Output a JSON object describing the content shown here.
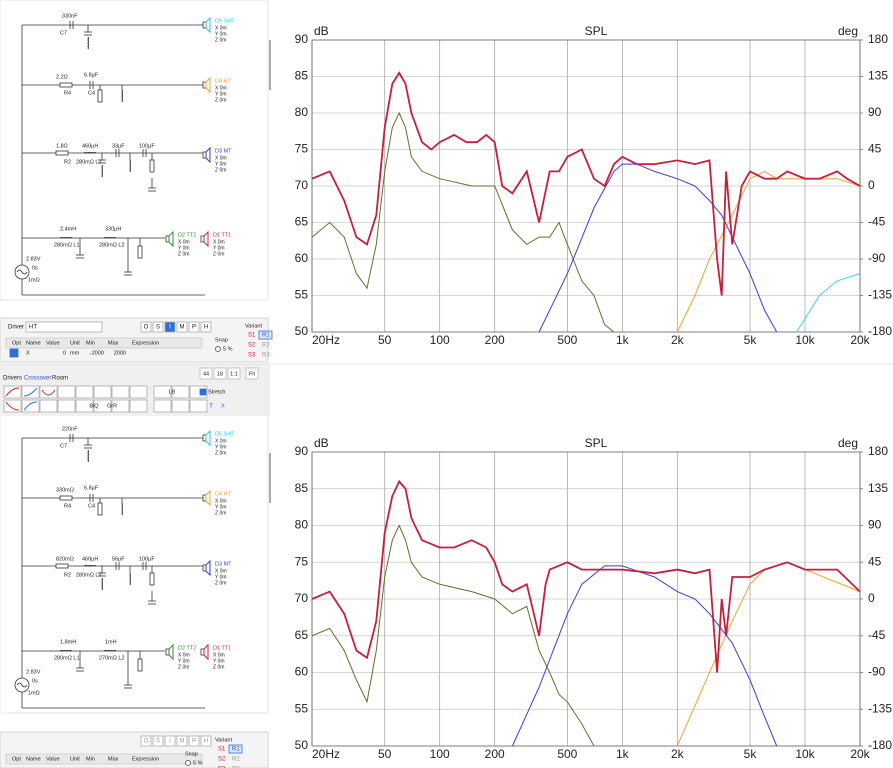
{
  "top": {
    "schematic": {
      "labels": [
        "330nF",
        "C7",
        "2.2Ω",
        "R4",
        "6.8µF",
        "C4",
        "1.8Ω",
        "R2",
        "460µH",
        "280mΩ L3",
        "33µF",
        "100µF",
        "2.4mH",
        "280mΩ L1",
        "330µH",
        "280mΩ L2",
        "2.83V",
        "0s",
        "1mΩ"
      ],
      "drivers": [
        {
          "name": "D5 SHT",
          "color": "#2ac4e6"
        },
        {
          "name": "D4 HT",
          "color": "#f0a030"
        },
        {
          "name": "D3 MT",
          "color": "#3040c0"
        },
        {
          "name": "D2 TT2",
          "color": "#3a8a3a"
        },
        {
          "name": "D1 TT1",
          "color": "#d02040"
        }
      ],
      "coords": [
        "X 0m",
        "Y 0m",
        "Z 0m"
      ]
    },
    "panel": {
      "driver_label": "Driver",
      "driver": "HT",
      "modes": [
        "O",
        "S",
        "I",
        "M",
        "P",
        "H"
      ],
      "header": [
        "Opt",
        "Name",
        "Value",
        "Unit",
        "Min",
        "Max",
        "Expression"
      ],
      "row": [
        "X",
        0,
        "mm",
        -2000,
        2000
      ],
      "snap": "Snap",
      "snap_value": "5 %",
      "variant": "Variant",
      "variants": [
        [
          "S1",
          "R1"
        ],
        [
          "S2",
          "R2"
        ],
        [
          "S3",
          "R3"
        ]
      ]
    },
    "chart_data": {
      "type": "line",
      "title": "SPL",
      "y_label": "dB",
      "y2_label": "deg",
      "x_scale": "log",
      "grid": true,
      "xlim": [
        20,
        20000
      ],
      "xticks": [
        {
          "value": 20,
          "label": "20Hz"
        },
        50,
        100,
        200,
        500,
        {
          "value": 1000,
          "label": "1k"
        },
        {
          "value": 2000,
          "label": "2k"
        },
        {
          "value": 5000,
          "label": "5k"
        },
        {
          "value": 10000,
          "label": "10k"
        },
        {
          "value": 20000,
          "label": "20k"
        }
      ],
      "ylim": [
        50,
        90
      ],
      "yticks": [
        50,
        55,
        60,
        65,
        70,
        75,
        80,
        85,
        90
      ],
      "y2lim": [
        -180,
        180
      ],
      "y2ticks": [
        -180,
        -135,
        -90,
        -45,
        0,
        45,
        90,
        135,
        180
      ],
      "series": [
        {
          "color": "#6b6b2a",
          "x": [
            20,
            25,
            30,
            35,
            40,
            45,
            50,
            55,
            60,
            65,
            70,
            80,
            100,
            150,
            200,
            250,
            300,
            350,
            400,
            450,
            500,
            600,
            700,
            800,
            900
          ],
          "values": [
            63,
            65,
            63,
            58,
            56,
            62,
            72,
            78,
            80,
            78,
            74,
            72,
            71,
            70,
            70,
            64,
            62,
            63,
            63,
            65,
            62,
            57,
            55,
            51,
            50
          ]
        },
        {
          "color": "#3b3bdc",
          "x": [
            350,
            500,
            700,
            900,
            1000,
            1200,
            1500,
            2000,
            2500,
            3000,
            3500,
            4000,
            5000,
            6000,
            7000
          ],
          "values": [
            50,
            58,
            67,
            72,
            73,
            73,
            72,
            71,
            70,
            68,
            66,
            63,
            58,
            53,
            50
          ]
        },
        {
          "color": "#f0a030",
          "x": [
            2000,
            2500,
            3000,
            4000,
            5000,
            6000,
            7000,
            10000,
            15000,
            20000
          ],
          "values": [
            50,
            55,
            60,
            66,
            71,
            72,
            71,
            71,
            71,
            70
          ]
        },
        {
          "color": "#40d0e8",
          "x": [
            9000,
            12000,
            15000,
            20000
          ],
          "values": [
            50,
            55,
            57,
            58
          ]
        },
        {
          "color": "#c81e3c",
          "x": [
            20,
            25,
            30,
            35,
            40,
            45,
            50,
            55,
            60,
            65,
            70,
            80,
            90,
            100,
            120,
            140,
            160,
            180,
            200,
            220,
            250,
            300,
            350,
            400,
            450,
            500,
            600,
            700,
            800,
            900,
            1000,
            1200,
            1500,
            2000,
            2500,
            3000,
            3300,
            3500,
            3700,
            4000,
            4500,
            5000,
            6000,
            7000,
            8000,
            10000,
            12000,
            15000,
            17000,
            20000
          ],
          "values": [
            71,
            72,
            68,
            63,
            62,
            66,
            78,
            84,
            85.5,
            84,
            80,
            76,
            75,
            76,
            77,
            76,
            76,
            77,
            76,
            70,
            69,
            72,
            65,
            72,
            72,
            74,
            75,
            71,
            70,
            73,
            74,
            73,
            73,
            73.5,
            73,
            73.5,
            60,
            55,
            72,
            62,
            70,
            72,
            71,
            71,
            72,
            71,
            71,
            72,
            71,
            70
          ]
        }
      ]
    }
  },
  "toolbar": {
    "tabs": [
      "Drivers",
      "Crossover",
      "Room"
    ],
    "zoom": [
      "44",
      "18",
      "1:1",
      "Fit"
    ],
    "buttons": [
      "LB",
      "BiQ",
      "GrR",
      "Stretch",
      "T",
      "X"
    ]
  },
  "bottom": {
    "schematic": {
      "labels": [
        "220nF",
        "C7",
        "330mΩ",
        "R4",
        "6.8µF",
        "C4",
        "820mΩ",
        "R2",
        "460µH",
        "280mΩ L3",
        "56µF",
        "100µF",
        "1.8mH",
        "280mΩ L1",
        "1mH",
        "270mΩ L2",
        "2.83V",
        "0s",
        "1mΩ"
      ],
      "drivers": [
        {
          "name": "D5 SHT",
          "color": "#2ac4e6"
        },
        {
          "name": "D4 HT",
          "color": "#f0a030"
        },
        {
          "name": "D3 MT",
          "color": "#3040c0"
        },
        {
          "name": "D2 TT2",
          "color": "#3a8a3a"
        },
        {
          "name": "D1 TT1",
          "color": "#d02040"
        }
      ],
      "coords": [
        "X 0m",
        "Y 0m",
        "Z 0m"
      ]
    },
    "panel": {
      "modes": [
        "O",
        "S",
        "I",
        "M",
        "P",
        "H"
      ],
      "header": [
        "Opt",
        "Name",
        "Value",
        "Unit",
        "Min",
        "Max",
        "Expression"
      ],
      "snap": "Snap",
      "snap_value": "5 %",
      "variant": "Variant",
      "variants": [
        [
          "S1",
          "R1"
        ],
        [
          "S2",
          "R2"
        ],
        [
          "S3",
          "R3"
        ]
      ]
    },
    "chart_data": {
      "type": "line",
      "title": "SPL",
      "y_label": "dB",
      "y2_label": "deg",
      "x_scale": "log",
      "grid": true,
      "xlim": [
        20,
        20000
      ],
      "xticks": [
        {
          "value": 20,
          "label": "20Hz"
        },
        50,
        100,
        200,
        500,
        {
          "value": 1000,
          "label": "1k"
        },
        {
          "value": 2000,
          "label": "2k"
        },
        {
          "value": 5000,
          "label": "5k"
        },
        {
          "value": 10000,
          "label": "10k"
        },
        {
          "value": 20000,
          "label": "20k"
        }
      ],
      "ylim": [
        50,
        90
      ],
      "yticks": [
        50,
        55,
        60,
        65,
        70,
        75,
        80,
        85,
        90
      ],
      "y2lim": [
        -180,
        180
      ],
      "y2ticks": [
        -180,
        -135,
        -90,
        -45,
        0,
        45,
        90,
        135,
        180
      ],
      "series": [
        {
          "color": "#6b6b2a",
          "x": [
            20,
            25,
            30,
            35,
            40,
            45,
            50,
            55,
            60,
            65,
            70,
            80,
            100,
            150,
            200,
            250,
            300,
            350,
            400,
            450,
            500,
            600,
            700
          ],
          "values": [
            65,
            66,
            63,
            59,
            56,
            63,
            73,
            78,
            80,
            78,
            75,
            73,
            72,
            71,
            70,
            68,
            69,
            63,
            60,
            57,
            56,
            53,
            50
          ]
        },
        {
          "color": "#3b3bdc",
          "x": [
            250,
            350,
            500,
            600,
            800,
            1000,
            1500,
            2000,
            2500,
            3000,
            4000,
            5000,
            6000,
            7000
          ],
          "values": [
            50,
            58,
            68,
            72,
            74.5,
            74.5,
            73,
            71,
            70,
            68,
            64,
            59,
            54,
            50
          ]
        },
        {
          "color": "#f0a030",
          "x": [
            2000,
            3000,
            4000,
            5000,
            6000,
            8000,
            10000,
            20000
          ],
          "values": [
            50,
            60,
            67,
            72,
            74,
            75,
            74,
            71
          ]
        },
        {
          "color": "#c81e3c",
          "x": [
            20,
            25,
            30,
            35,
            40,
            45,
            50,
            55,
            60,
            65,
            70,
            80,
            100,
            120,
            150,
            180,
            200,
            220,
            250,
            300,
            350,
            380,
            400,
            500,
            600,
            800,
            1000,
            1500,
            2000,
            2500,
            3000,
            3300,
            3500,
            3700,
            4000,
            5000,
            6000,
            8000,
            10000,
            15000,
            20000
          ],
          "values": [
            70,
            71,
            68,
            63,
            62,
            67,
            79,
            84,
            86,
            85,
            81,
            78,
            77,
            77,
            78,
            77,
            75,
            72,
            71,
            72,
            65,
            72,
            74,
            75,
            74,
            74,
            74,
            73.5,
            74,
            73.5,
            74,
            60,
            70,
            65,
            73,
            73,
            74,
            75,
            74,
            74,
            71
          ]
        }
      ]
    }
  }
}
